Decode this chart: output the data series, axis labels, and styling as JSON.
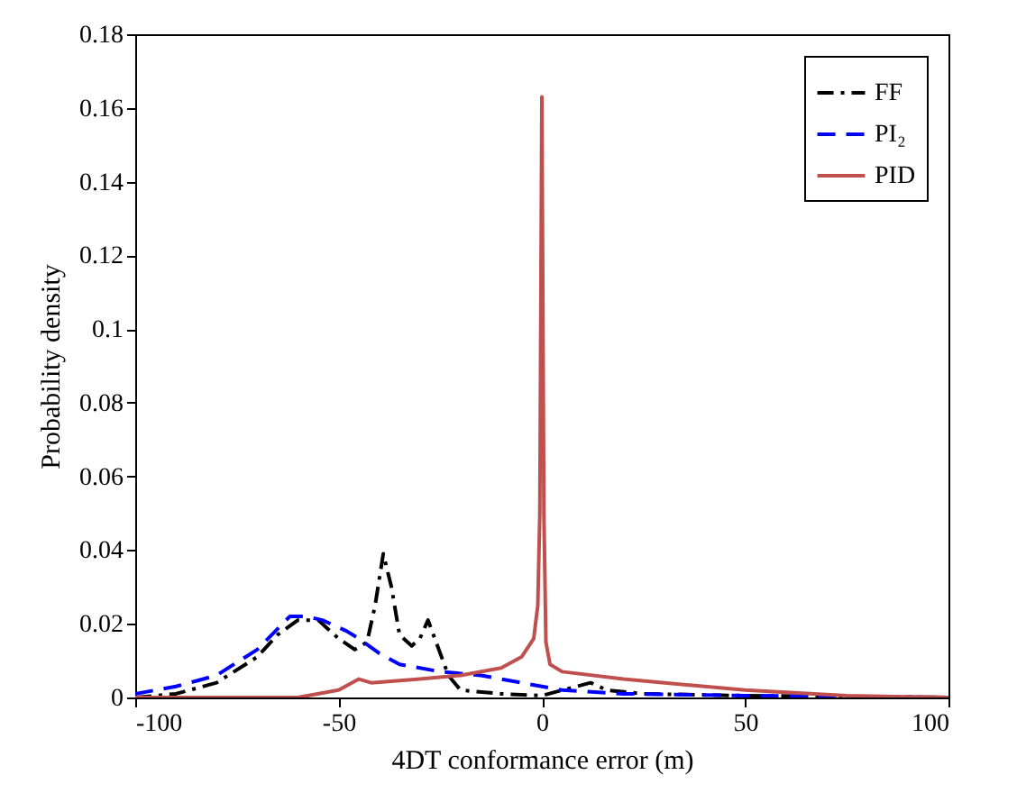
{
  "chart_data": {
    "type": "line",
    "xlabel": "4DT conformance error (m)",
    "ylabel": "Probability density",
    "xlim": [
      -100,
      100
    ],
    "xticks": [
      -100,
      -50,
      0,
      50,
      100
    ],
    "ylim": [
      0,
      0.18
    ],
    "yticks": [
      0,
      0.02,
      0.04,
      0.06,
      0.08,
      0.1,
      0.12,
      0.14,
      0.16,
      0.18
    ],
    "grid": false,
    "legend": "top right",
    "marker": "none",
    "series": [
      {
        "name": "FF",
        "color": "#000000",
        "line_style": "dashdot",
        "x": [
          -100,
          -90,
          -80,
          -70,
          -65,
          -60,
          -55,
          -50,
          -46,
          -43,
          -41,
          -39,
          -37,
          -35,
          -32,
          -30,
          -28,
          -26,
          -23,
          -20,
          -10,
          0,
          5,
          12,
          16,
          25,
          50,
          100
        ],
        "values": [
          0,
          0.001,
          0.004,
          0.011,
          0.017,
          0.021,
          0.021,
          0.016,
          0.013,
          0.015,
          0.025,
          0.039,
          0.03,
          0.017,
          0.014,
          0.016,
          0.021,
          0.015,
          0.006,
          0.002,
          0.001,
          0.0005,
          0.002,
          0.004,
          0.002,
          0.001,
          0.0005,
          0
        ]
      },
      {
        "name": "PI₂",
        "color": "#0000ff",
        "line_style": "dashed",
        "x": [
          -100,
          -90,
          -80,
          -70,
          -62,
          -58,
          -54,
          -48,
          -45,
          -40,
          -35,
          -25,
          -15,
          -5,
          0,
          5,
          20,
          50,
          100
        ],
        "values": [
          0.001,
          0.003,
          0.006,
          0.013,
          0.022,
          0.022,
          0.021,
          0.018,
          0.016,
          0.012,
          0.009,
          0.007,
          0.006,
          0.004,
          0.003,
          0.002,
          0.001,
          0.0005,
          0
        ]
      },
      {
        "name": "PID",
        "color": "#c0504d",
        "line_style": "solid",
        "x": [
          -100,
          -60,
          -50,
          -45,
          -42,
          -30,
          -20,
          -10,
          -5,
          -2,
          -1,
          -0.5,
          0,
          0.5,
          1,
          2,
          5,
          20,
          50,
          75,
          100
        ],
        "values": [
          0,
          0,
          0.002,
          0.005,
          0.004,
          0.005,
          0.006,
          0.008,
          0.011,
          0.016,
          0.025,
          0.05,
          0.163,
          0.05,
          0.015,
          0.009,
          0.007,
          0.005,
          0.002,
          0.0005,
          0
        ]
      }
    ]
  }
}
